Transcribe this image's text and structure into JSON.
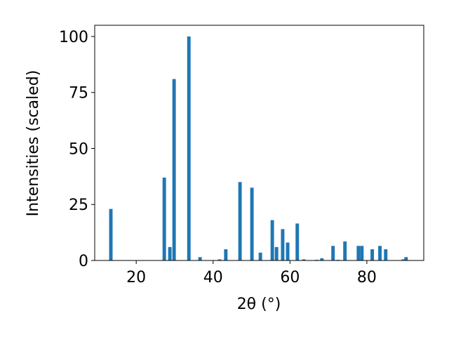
{
  "chart_data": {
    "type": "bar",
    "x_label": "2θ (°)",
    "y_label": "Intensities (scaled)",
    "color": "#1f77b4",
    "x": [
      13.4,
      27.3,
      28.75,
      29.85,
      33.7,
      36.6,
      41.7,
      43.3,
      47.0,
      50.1,
      52.3,
      55.4,
      56.5,
      58.1,
      59.4,
      61.9,
      63.6,
      66.9,
      68.3,
      71.2,
      72.5,
      74.3,
      77.8,
      78.7,
      81.4,
      83.4,
      84.9,
      89.5,
      90.2
    ],
    "values": [
      23,
      37,
      6,
      81,
      100,
      1.5,
      0.5,
      5,
      35,
      32.5,
      3.5,
      18,
      6,
      14,
      8,
      16.5,
      0.5,
      0.3,
      1,
      6.5,
      0.3,
      8.5,
      6.5,
      6.5,
      5,
      6.5,
      5,
      0.5,
      1.5
    ],
    "xlim": [
      9.2,
      94.8
    ],
    "ylim": [
      0,
      105
    ],
    "xticks": [
      20,
      40,
      60,
      80
    ],
    "yticks": [
      0,
      25,
      50,
      75,
      100
    ]
  }
}
